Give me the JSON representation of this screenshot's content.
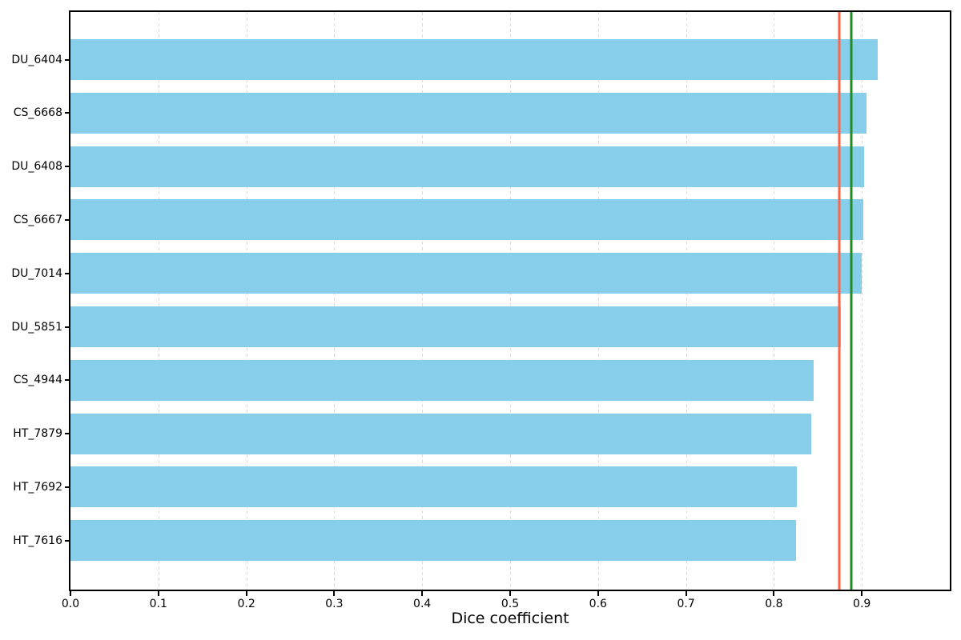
{
  "chart_data": {
    "type": "bar",
    "orientation": "horizontal",
    "title": "",
    "xlabel": "Dice coefficient",
    "ylabel": "",
    "categories": [
      "DU_6404",
      "CS_6668",
      "DU_6408",
      "CS_6667",
      "DU_7014",
      "DU_5851",
      "CS_4944",
      "HT_7879",
      "HT_7692",
      "HT_7616"
    ],
    "values": [
      0.918,
      0.905,
      0.903,
      0.902,
      0.9,
      0.876,
      0.845,
      0.842,
      0.826,
      0.825
    ],
    "xlim": [
      0.0,
      1.0
    ],
    "xtick_values": [
      0.0,
      0.1,
      0.2,
      0.3,
      0.4,
      0.5,
      0.6,
      0.7,
      0.8,
      0.9
    ],
    "xtick_labels": [
      "0.0",
      "0.1",
      "0.2",
      "0.3",
      "0.4",
      "0.5",
      "0.6",
      "0.7",
      "0.8",
      "0.9"
    ],
    "grid": {
      "axis": "x",
      "style": "dashed",
      "color": "#dcdcdc"
    },
    "legend_position": "none",
    "bar_color": "#87CEEB",
    "reference_lines": [
      {
        "name": "mean-line",
        "value": 0.874,
        "color": "#FF6347",
        "style": "solid"
      },
      {
        "name": "median-line",
        "value": 0.888,
        "color": "#228B22",
        "style": "solid"
      }
    ]
  }
}
